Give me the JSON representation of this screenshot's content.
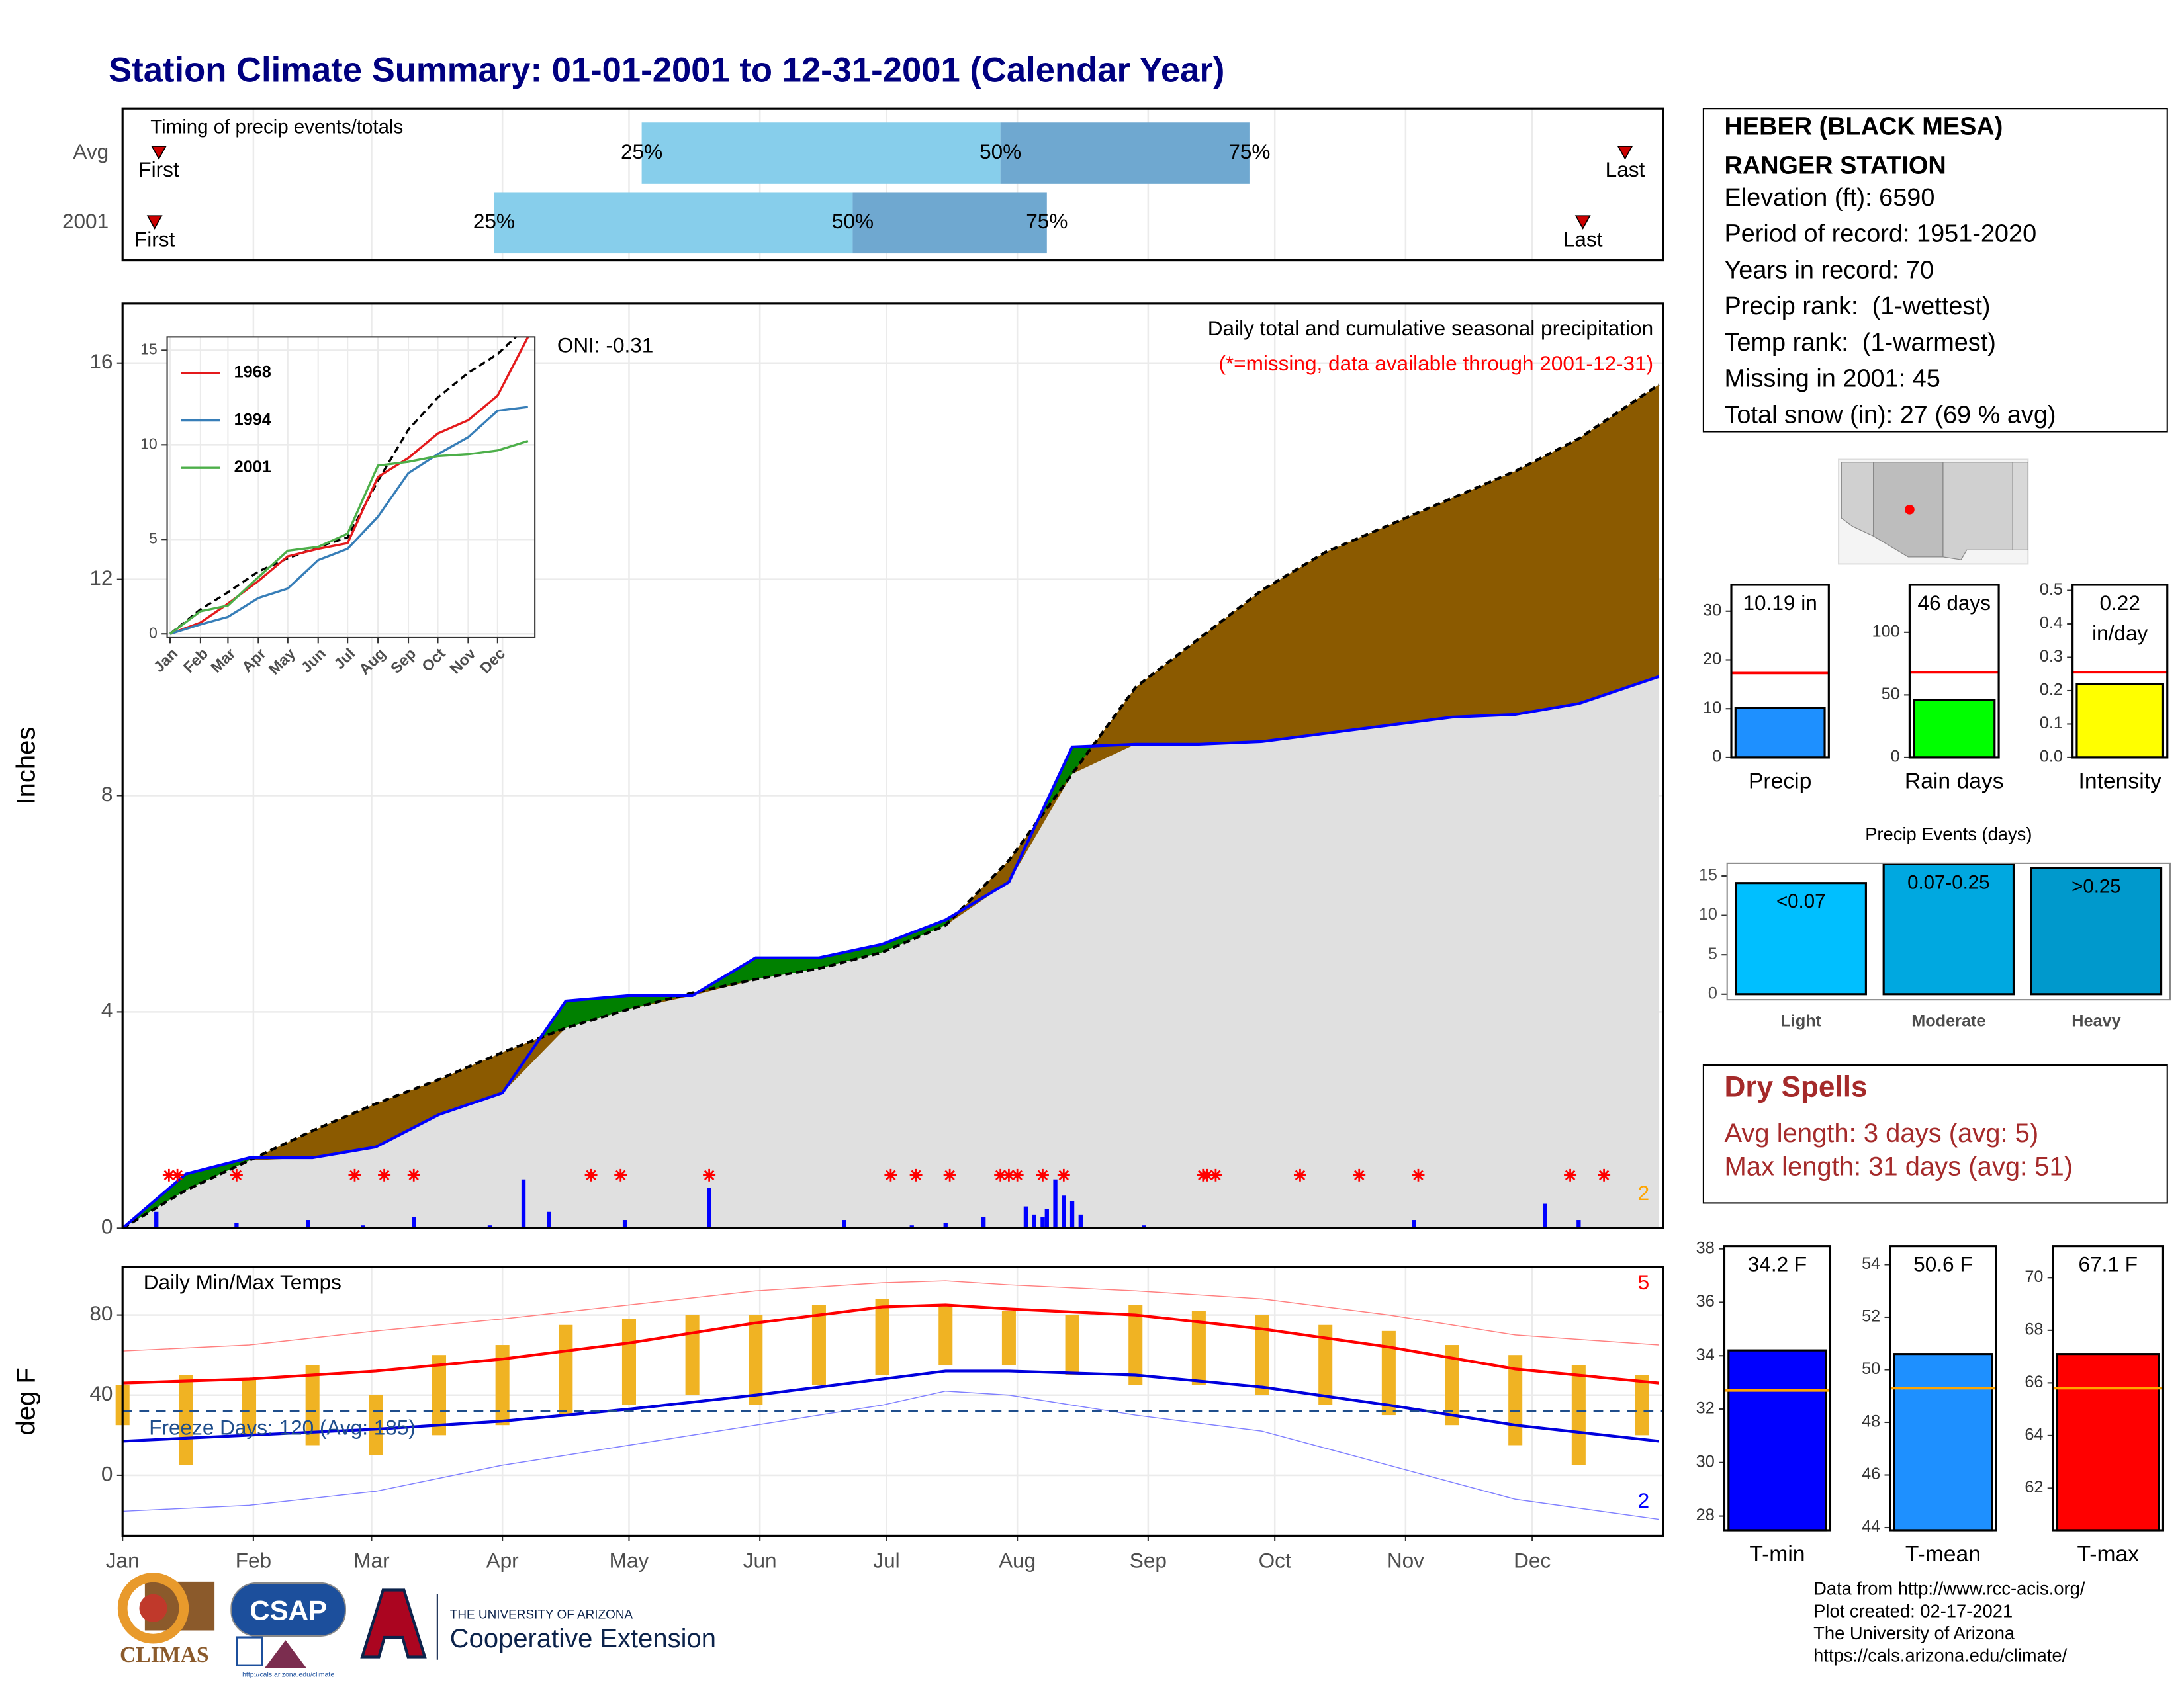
{
  "title": "Station Climate Summary: 01-01-2001 to 12-31-2001 (Calendar Year)",
  "chart_data": [
    {
      "type": "timing",
      "title": "Timing of precip events/totals",
      "categories": [
        "Avg",
        "2001"
      ],
      "first": [
        8.6,
        7.6
      ],
      "q25": [
        123,
        88
      ],
      "q50": [
        208,
        173
      ],
      "q75": [
        267,
        219
      ],
      "last": [
        356,
        346
      ],
      "labels": {
        "first": "First",
        "last": "Last",
        "q25": "25%",
        "q50": "50%",
        "q75": "75%"
      },
      "colors": {
        "lower": "#87ceeb",
        "upper": "#6fa8d0",
        "marker": "#cc0000"
      },
      "xlim": [
        0,
        365
      ]
    },
    {
      "type": "area",
      "title": "Daily total and cumulative seasonal precipitation",
      "subtitle": "(*=missing, data available through 2001-12-31)",
      "annotation": "ONI: -0.31",
      "note": "2",
      "note_color": "#ffa500",
      "y_label": "Inches",
      "x": [
        0,
        15,
        30,
        45,
        60,
        75,
        90,
        105,
        120,
        135,
        150,
        165,
        180,
        195,
        210,
        225,
        240,
        255,
        270,
        285,
        300,
        315,
        330,
        345,
        364
      ],
      "series": [
        {
          "color": "#000000",
          "dash": true,
          "values": [
            0,
            0.7,
            1.25,
            1.8,
            2.3,
            2.75,
            3.25,
            3.7,
            4.05,
            4.35,
            4.6,
            4.8,
            5.1,
            5.6,
            6.8,
            8.4,
            10.0,
            10.9,
            11.8,
            12.5,
            13.0,
            13.5,
            14.0,
            14.6,
            15.6
          ]
        },
        {
          "color": "#0000ff",
          "values": [
            0,
            1.0,
            1.3,
            1.3,
            1.5,
            2.1,
            2.5,
            4.2,
            4.3,
            4.3,
            5.0,
            5.0,
            5.25,
            5.7,
            6.4,
            8.9,
            8.95,
            8.95,
            9.0,
            9.15,
            9.3,
            9.45,
            9.5,
            9.7,
            10.2
          ]
        }
      ],
      "above_color": "#008000",
      "below_color": "#8b5a00",
      "overlap_color": "#e0e0e0",
      "daily": {
        "color": "#0000ff",
        "x": [
          8,
          27,
          44,
          57,
          69,
          87,
          95,
          101,
          119,
          139,
          171,
          187,
          195,
          204,
          214,
          216,
          218,
          219,
          221,
          223,
          225,
          227,
          242,
          306,
          337,
          345
        ],
        "values": [
          0.3,
          0.1,
          0.15,
          0.05,
          0.2,
          0.05,
          0.9,
          0.3,
          0.15,
          0.75,
          0.15,
          0.05,
          0.1,
          0.2,
          0.4,
          0.25,
          0.2,
          0.35,
          0.9,
          0.6,
          0.5,
          0.25,
          0.05,
          0.15,
          0.45,
          0.15
        ]
      },
      "missing_days": [
        11,
        13,
        27,
        55,
        62,
        69,
        111,
        118,
        139,
        182,
        188,
        196,
        208,
        210,
        212,
        218,
        223,
        256,
        257,
        259,
        279,
        293,
        307,
        343,
        351
      ],
      "missing_color": "#ff0000",
      "xlim": [
        0,
        365
      ],
      "ylim": [
        0,
        17.1
      ],
      "yticks": [
        0,
        4,
        8,
        12,
        16
      ],
      "grid": true
    },
    {
      "type": "line",
      "x": [
        0,
        31,
        59,
        90,
        120,
        151,
        181,
        212,
        243,
        273,
        304,
        334,
        365
      ],
      "series": [
        {
          "color": "#000000",
          "dash": true,
          "values": [
            0,
            1.3,
            2.2,
            3.3,
            4.0,
            4.6,
            5.1,
            8.1,
            10.8,
            12.5,
            13.8,
            14.8,
            16.3
          ]
        },
        {
          "name": "1968",
          "color": "#e41a1c",
          "values": [
            0,
            0.6,
            1.6,
            2.8,
            4.1,
            4.5,
            4.8,
            8.3,
            9.3,
            10.6,
            11.3,
            12.6,
            15.7
          ]
        },
        {
          "name": "1994",
          "color": "#377eb8",
          "values": [
            0,
            0.5,
            0.9,
            1.9,
            2.4,
            3.9,
            4.5,
            6.2,
            8.5,
            9.5,
            10.4,
            11.8,
            12.0
          ]
        },
        {
          "name": "2001",
          "color": "#4daf4a",
          "values": [
            0,
            1.2,
            1.5,
            3.0,
            4.4,
            4.6,
            5.3,
            8.9,
            9.1,
            9.4,
            9.5,
            9.7,
            10.2
          ]
        }
      ],
      "xlim": [
        -3,
        372
      ],
      "ylim": [
        -0.2,
        15.7
      ],
      "yticks": [
        0,
        5,
        10,
        15
      ],
      "xticks": [
        {
          "value": 0,
          "label": "Jan"
        },
        {
          "value": 31,
          "label": "Feb"
        },
        {
          "value": 59,
          "label": "Mar"
        },
        {
          "value": 90,
          "label": "Apr"
        },
        {
          "value": 120,
          "label": "May"
        },
        {
          "value": 151,
          "label": "Jun"
        },
        {
          "value": 181,
          "label": "Jul"
        },
        {
          "value": 212,
          "label": "Aug"
        },
        {
          "value": 243,
          "label": "Sep"
        },
        {
          "value": 273,
          "label": "Oct"
        },
        {
          "value": 304,
          "label": "Nov"
        },
        {
          "value": 334,
          "label": "Dec"
        }
      ],
      "grid": true
    },
    {
      "type": "temperature",
      "title": "Daily Min/Max Temps",
      "y_label": "deg F",
      "annotation": "Freeze Days: 120 (Avg: 185)",
      "freeze_line": 32,
      "freeze_color": "#1f4e8c",
      "notes": [
        {
          "text": "5",
          "color": "#ff0000"
        },
        {
          "text": "2",
          "color": "#0000ff"
        }
      ],
      "x": [
        0,
        30,
        60,
        90,
        120,
        150,
        180,
        195,
        210,
        240,
        270,
        300,
        330,
        364
      ],
      "series": [
        {
          "color": "#ff8080",
          "line_width": 0.7,
          "values": [
            62,
            65,
            72,
            78,
            85,
            92,
            96,
            97,
            95,
            92,
            88,
            80,
            70,
            65
          ]
        },
        {
          "color": "#8080ff",
          "line_width": 0.7,
          "values": [
            -18,
            -15,
            -8,
            5,
            15,
            25,
            35,
            42,
            40,
            30,
            22,
            5,
            -12,
            -22
          ]
        },
        {
          "color": "#ff0000",
          "line_width": 2,
          "values": [
            46,
            48,
            52,
            58,
            66,
            76,
            84,
            85,
            83,
            80,
            73,
            64,
            53,
            46
          ]
        },
        {
          "color": "#0000dd",
          "line_width": 2,
          "values": [
            17,
            20,
            23,
            27,
            33,
            40,
            48,
            52,
            52,
            50,
            44,
            35,
            25,
            17
          ]
        }
      ],
      "daily": {
        "color": "#f0b323",
        "x": [
          0,
          15,
          30,
          45,
          60,
          75,
          90,
          105,
          120,
          135,
          150,
          165,
          180,
          195,
          210,
          225,
          240,
          255,
          270,
          285,
          300,
          315,
          330,
          345,
          360
        ],
        "min": [
          25,
          5,
          20,
          15,
          10,
          20,
          25,
          30,
          35,
          40,
          35,
          45,
          50,
          55,
          55,
          50,
          45,
          45,
          40,
          35,
          30,
          25,
          15,
          5,
          20
        ],
        "max": [
          45,
          50,
          48,
          55,
          40,
          60,
          65,
          75,
          78,
          80,
          80,
          85,
          88,
          85,
          82,
          80,
          85,
          82,
          80,
          75,
          72,
          65,
          60,
          55,
          50
        ]
      },
      "xlim": [
        0,
        365
      ],
      "ylim": [
        -30.2,
        103.9
      ],
      "yticks": [
        0,
        40,
        80
      ],
      "xticks": [
        {
          "value": 0,
          "label": "Jan"
        },
        {
          "value": 31,
          "label": "Feb"
        },
        {
          "value": 59,
          "label": "Mar"
        },
        {
          "value": 90,
          "label": "Apr"
        },
        {
          "value": 120,
          "label": "May"
        },
        {
          "value": 151,
          "label": "Jun"
        },
        {
          "value": 181,
          "label": "Jul"
        },
        {
          "value": 212,
          "label": "Aug"
        },
        {
          "value": 243,
          "label": "Sep"
        },
        {
          "value": 273,
          "label": "Oct"
        },
        {
          "value": 304,
          "label": "Nov"
        },
        {
          "value": 334,
          "label": "Dec"
        }
      ],
      "grid": true
    },
    {
      "type": "bar",
      "categories": [
        "Precip"
      ],
      "values": [
        10.19
      ],
      "value_labels": [
        "10.19 in"
      ],
      "reference": 17.3,
      "reference_color": "#ff0000",
      "color": "#1e90ff",
      "ylim": [
        0,
        35.4
      ],
      "yticks": [
        0,
        10,
        20,
        30
      ]
    },
    {
      "type": "bar",
      "categories": [
        "Rain days"
      ],
      "values": [
        46
      ],
      "value_labels": [
        "46 days"
      ],
      "reference": 68,
      "reference_color": "#ff0000",
      "color": "#00ff00",
      "ylim": [
        0,
        138
      ],
      "yticks": [
        0,
        50,
        100
      ]
    },
    {
      "type": "bar",
      "categories": [
        "Intensity"
      ],
      "values": [
        0.22
      ],
      "value_labels": [
        "0.22 in/day"
      ],
      "reference": 0.255,
      "reference_color": "#ff0000",
      "color": "#ffff00",
      "ylim": [
        0,
        0.517
      ],
      "yticks": [
        {
          "value": 0,
          "label": "0.0"
        },
        0.1,
        0.2,
        0.3,
        0.4,
        0.5
      ]
    },
    {
      "type": "bar",
      "title": "Precip Events (days)",
      "categories": [
        "Light",
        "Moderate",
        "Heavy"
      ],
      "values": [
        14.1,
        16.5,
        16.0
      ],
      "bar_labels": [
        "<0.07",
        "0.07-0.25",
        ">0.25"
      ],
      "colors": [
        "#00bfff",
        "#00a8e0",
        "#0099cc"
      ],
      "ylim": [
        -0.7,
        16.6
      ],
      "yticks": [
        0,
        5,
        10,
        15
      ]
    },
    {
      "type": "bar",
      "categories": [
        "T-min"
      ],
      "values": [
        34.2
      ],
      "value_labels": [
        "34.2 F"
      ],
      "reference": 32.7,
      "reference_color": "#ffa500",
      "color": "#0000ff",
      "ylim": [
        27.47,
        38.1
      ],
      "yticks": [
        28,
        30,
        32,
        34,
        36,
        38
      ]
    },
    {
      "type": "bar",
      "categories": [
        "T-mean"
      ],
      "values": [
        50.6
      ],
      "value_labels": [
        "50.6 F"
      ],
      "reference": 49.3,
      "reference_color": "#ffa500",
      "color": "#1e90ff",
      "ylim": [
        43.9,
        54.7
      ],
      "yticks": [
        44,
        46,
        48,
        50,
        52,
        54
      ]
    },
    {
      "type": "bar",
      "categories": [
        "T-max"
      ],
      "values": [
        67.1
      ],
      "value_labels": [
        "67.1 F"
      ],
      "reference": 65.8,
      "reference_color": "#ffa500",
      "color": "#ff0000",
      "ylim": [
        60.4,
        71.2
      ],
      "yticks": [
        62,
        64,
        66,
        68,
        70
      ]
    }
  ],
  "station_info": [
    "HEBER (BLACK MESA)",
    "RANGER STATION",
    "Elevation (ft): 6590",
    "Period of record: 1951-2020",
    "Years in record: 70",
    "Precip rank:  (1-wettest)",
    "Temp rank:  (1-warmest)",
    "Missing in 2001: 45",
    "Total snow (in): 27 (69 % avg)"
  ],
  "dry_spells": {
    "title": "Dry Spells",
    "lines": [
      "Avg length: 3 days (avg: 5)",
      "Max length: 31 days (avg: 51)"
    ]
  },
  "footer": [
    "Data from http://www.rcc-acis.org/",
    "Plot created: 02-17-2021",
    "The University of Arizona",
    "https://cals.arizona.edu/climate/"
  ],
  "logos": {
    "climas": "CLIMAS",
    "csap": "CSAP",
    "csap_url": "http://cals.arizona.edu/climate",
    "university": "THE UNIVERSITY OF ARIZONA",
    "extension": "Cooperative Extension"
  }
}
